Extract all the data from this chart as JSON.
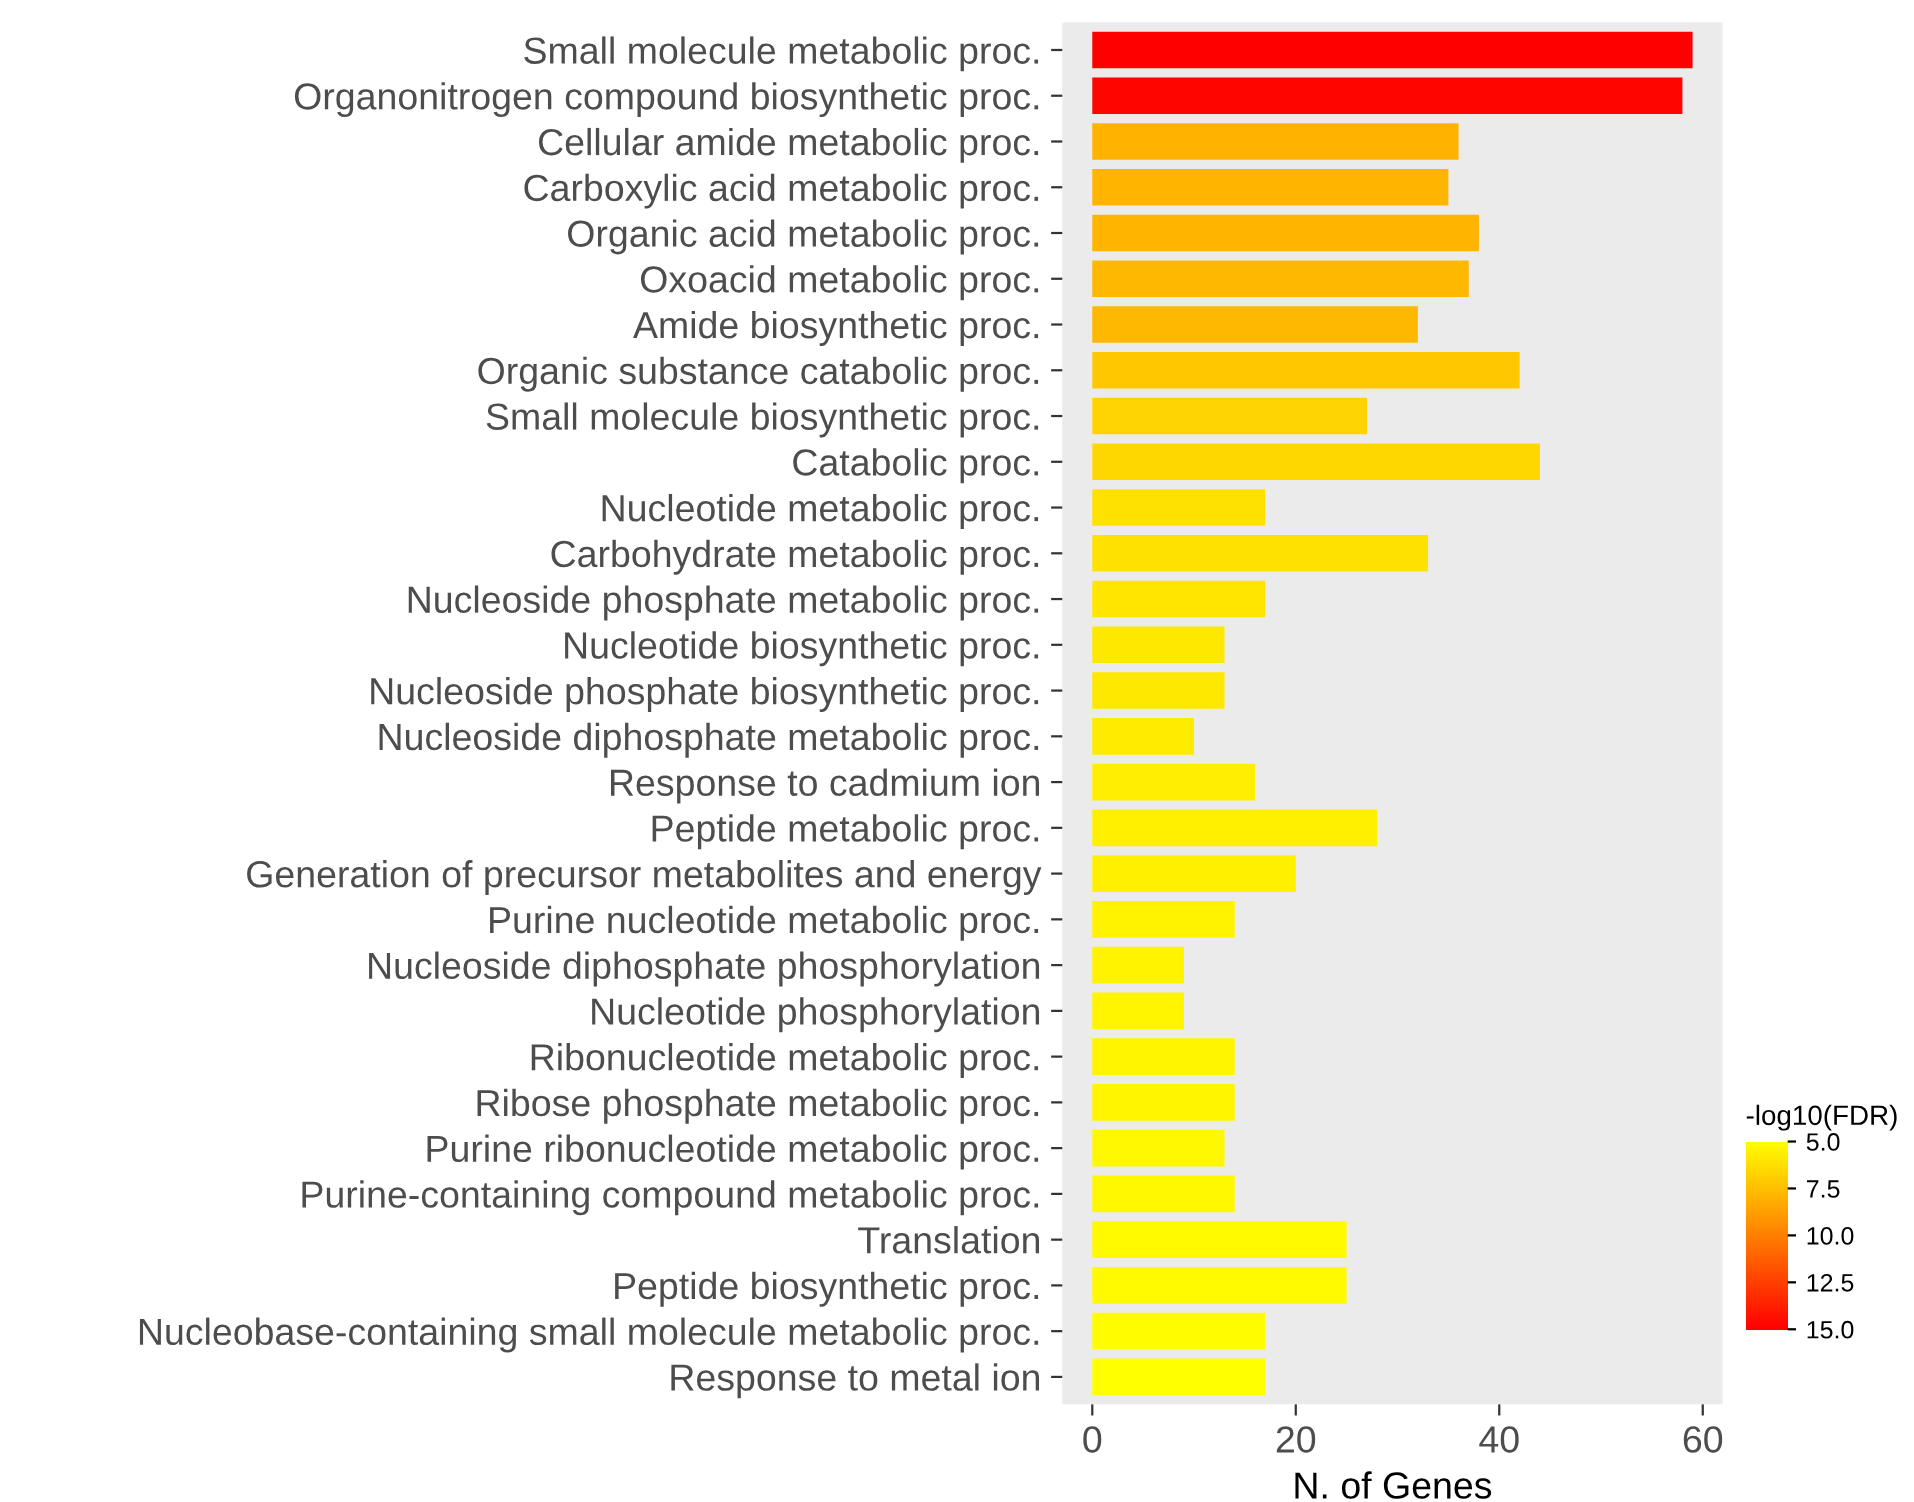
{
  "chart_data": {
    "type": "bar",
    "orientation": "horizontal",
    "xlabel": "N. of Genes",
    "clabel": "-log10(FDR)",
    "categories": [
      "Small molecule metabolic proc.",
      "Organonitrogen compound biosynthetic proc.",
      "Cellular amide metabolic proc.",
      "Carboxylic acid metabolic proc.",
      "Organic acid metabolic proc.",
      "Oxoacid metabolic proc.",
      "Amide biosynthetic proc.",
      "Organic substance catabolic proc.",
      "Small molecule biosynthetic proc.",
      "Catabolic proc.",
      "Nucleotide metabolic proc.",
      "Carbohydrate metabolic proc.",
      "Nucleoside phosphate metabolic proc.",
      "Nucleotide biosynthetic proc.",
      "Nucleoside phosphate biosynthetic proc.",
      "Nucleoside diphosphate metabolic proc.",
      "Response to cadmium ion",
      "Peptide metabolic proc.",
      "Generation of precursor metabolites and energy",
      "Purine nucleotide metabolic proc.",
      "Nucleoside diphosphate phosphorylation",
      "Nucleotide phosphorylation",
      "Ribonucleotide metabolic proc.",
      "Ribose phosphate metabolic proc.",
      "Purine ribonucleotide metabolic proc.",
      "Purine-containing compound metabolic proc.",
      "Translation",
      "Peptide biosynthetic proc.",
      "Nucleobase-containing small molecule metabolic proc.",
      "Response to metal ion"
    ],
    "values": [
      59,
      58,
      36,
      35,
      38,
      37,
      32,
      42,
      27,
      44,
      17,
      33,
      17,
      13,
      13,
      10,
      16,
      28,
      20,
      14,
      9,
      9,
      14,
      14,
      13,
      14,
      25,
      25,
      17,
      17
    ],
    "cvalues": [
      15,
      14.8,
      8,
      7.9,
      7.9,
      7.8,
      7.8,
      7.2,
      6.7,
      6.6,
      6.2,
      6.2,
      6,
      5.9,
      5.9,
      5.8,
      5.7,
      5.6,
      5.6,
      5.5,
      5.5,
      5.4,
      5.4,
      5.4,
      5.3,
      5.3,
      5.2,
      5.2,
      5.1,
      5
    ],
    "clim": [
      15,
      5
    ],
    "cticks": [
      {
        "value": 5,
        "label": "5.0"
      },
      {
        "value": 7.5,
        "label": "7.5"
      },
      {
        "value": 10,
        "label": "10.0"
      },
      {
        "value": 12.5,
        "label": "12.5"
      },
      {
        "value": 15,
        "label": "15.0"
      }
    ],
    "xlim": [
      -2.95,
      61.95
    ],
    "xticks": [
      0,
      20,
      40,
      60
    ],
    "grid": false
  }
}
